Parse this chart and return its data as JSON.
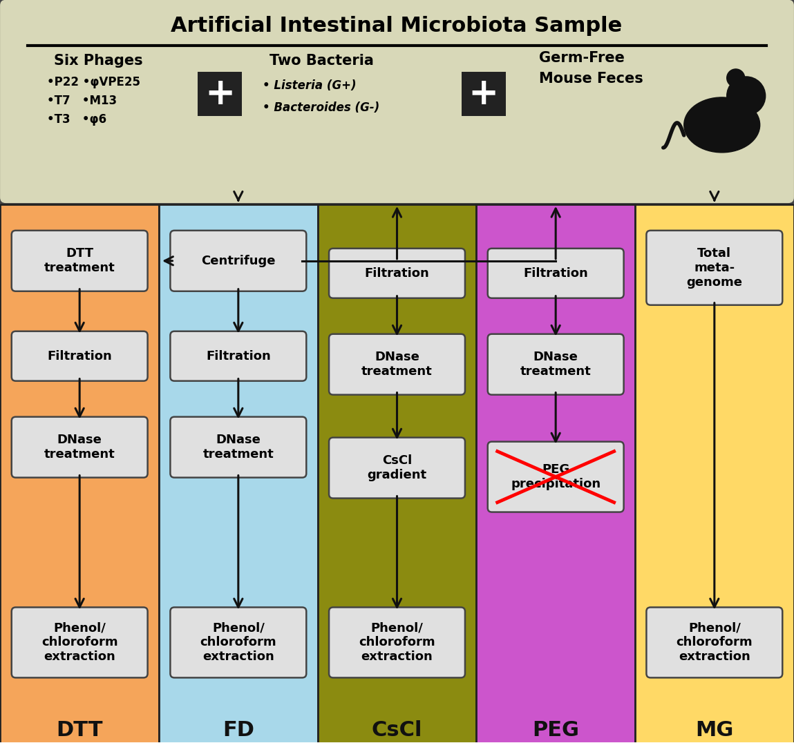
{
  "title": "Artificial Intestinal Microbiota Sample",
  "bg_color": "#d8d8b8",
  "six_phages_title": "Six Phages",
  "six_phages_items": [
    "•P22 •φVPE25",
    "•T7   •M13",
    "•T3   •φ6"
  ],
  "two_bacteria_title": "Two Bacteria",
  "two_bacteria_items": [
    "• Listeria (G+)",
    "• Bacteroides (G-)"
  ],
  "germ_free_line1": "Germ-Free",
  "germ_free_line2": "Mouse Feces",
  "col_colors": [
    "#F5A55A",
    "#A8D8EA",
    "#8B8B10",
    "#CC55CC",
    "#FFD966"
  ],
  "col_labels": [
    "DTT",
    "FD",
    "CsCl",
    "PEG",
    "MG"
  ],
  "box_fill": "#E0E0E0",
  "box_edge": "#444444",
  "arrow_color": "#111111"
}
